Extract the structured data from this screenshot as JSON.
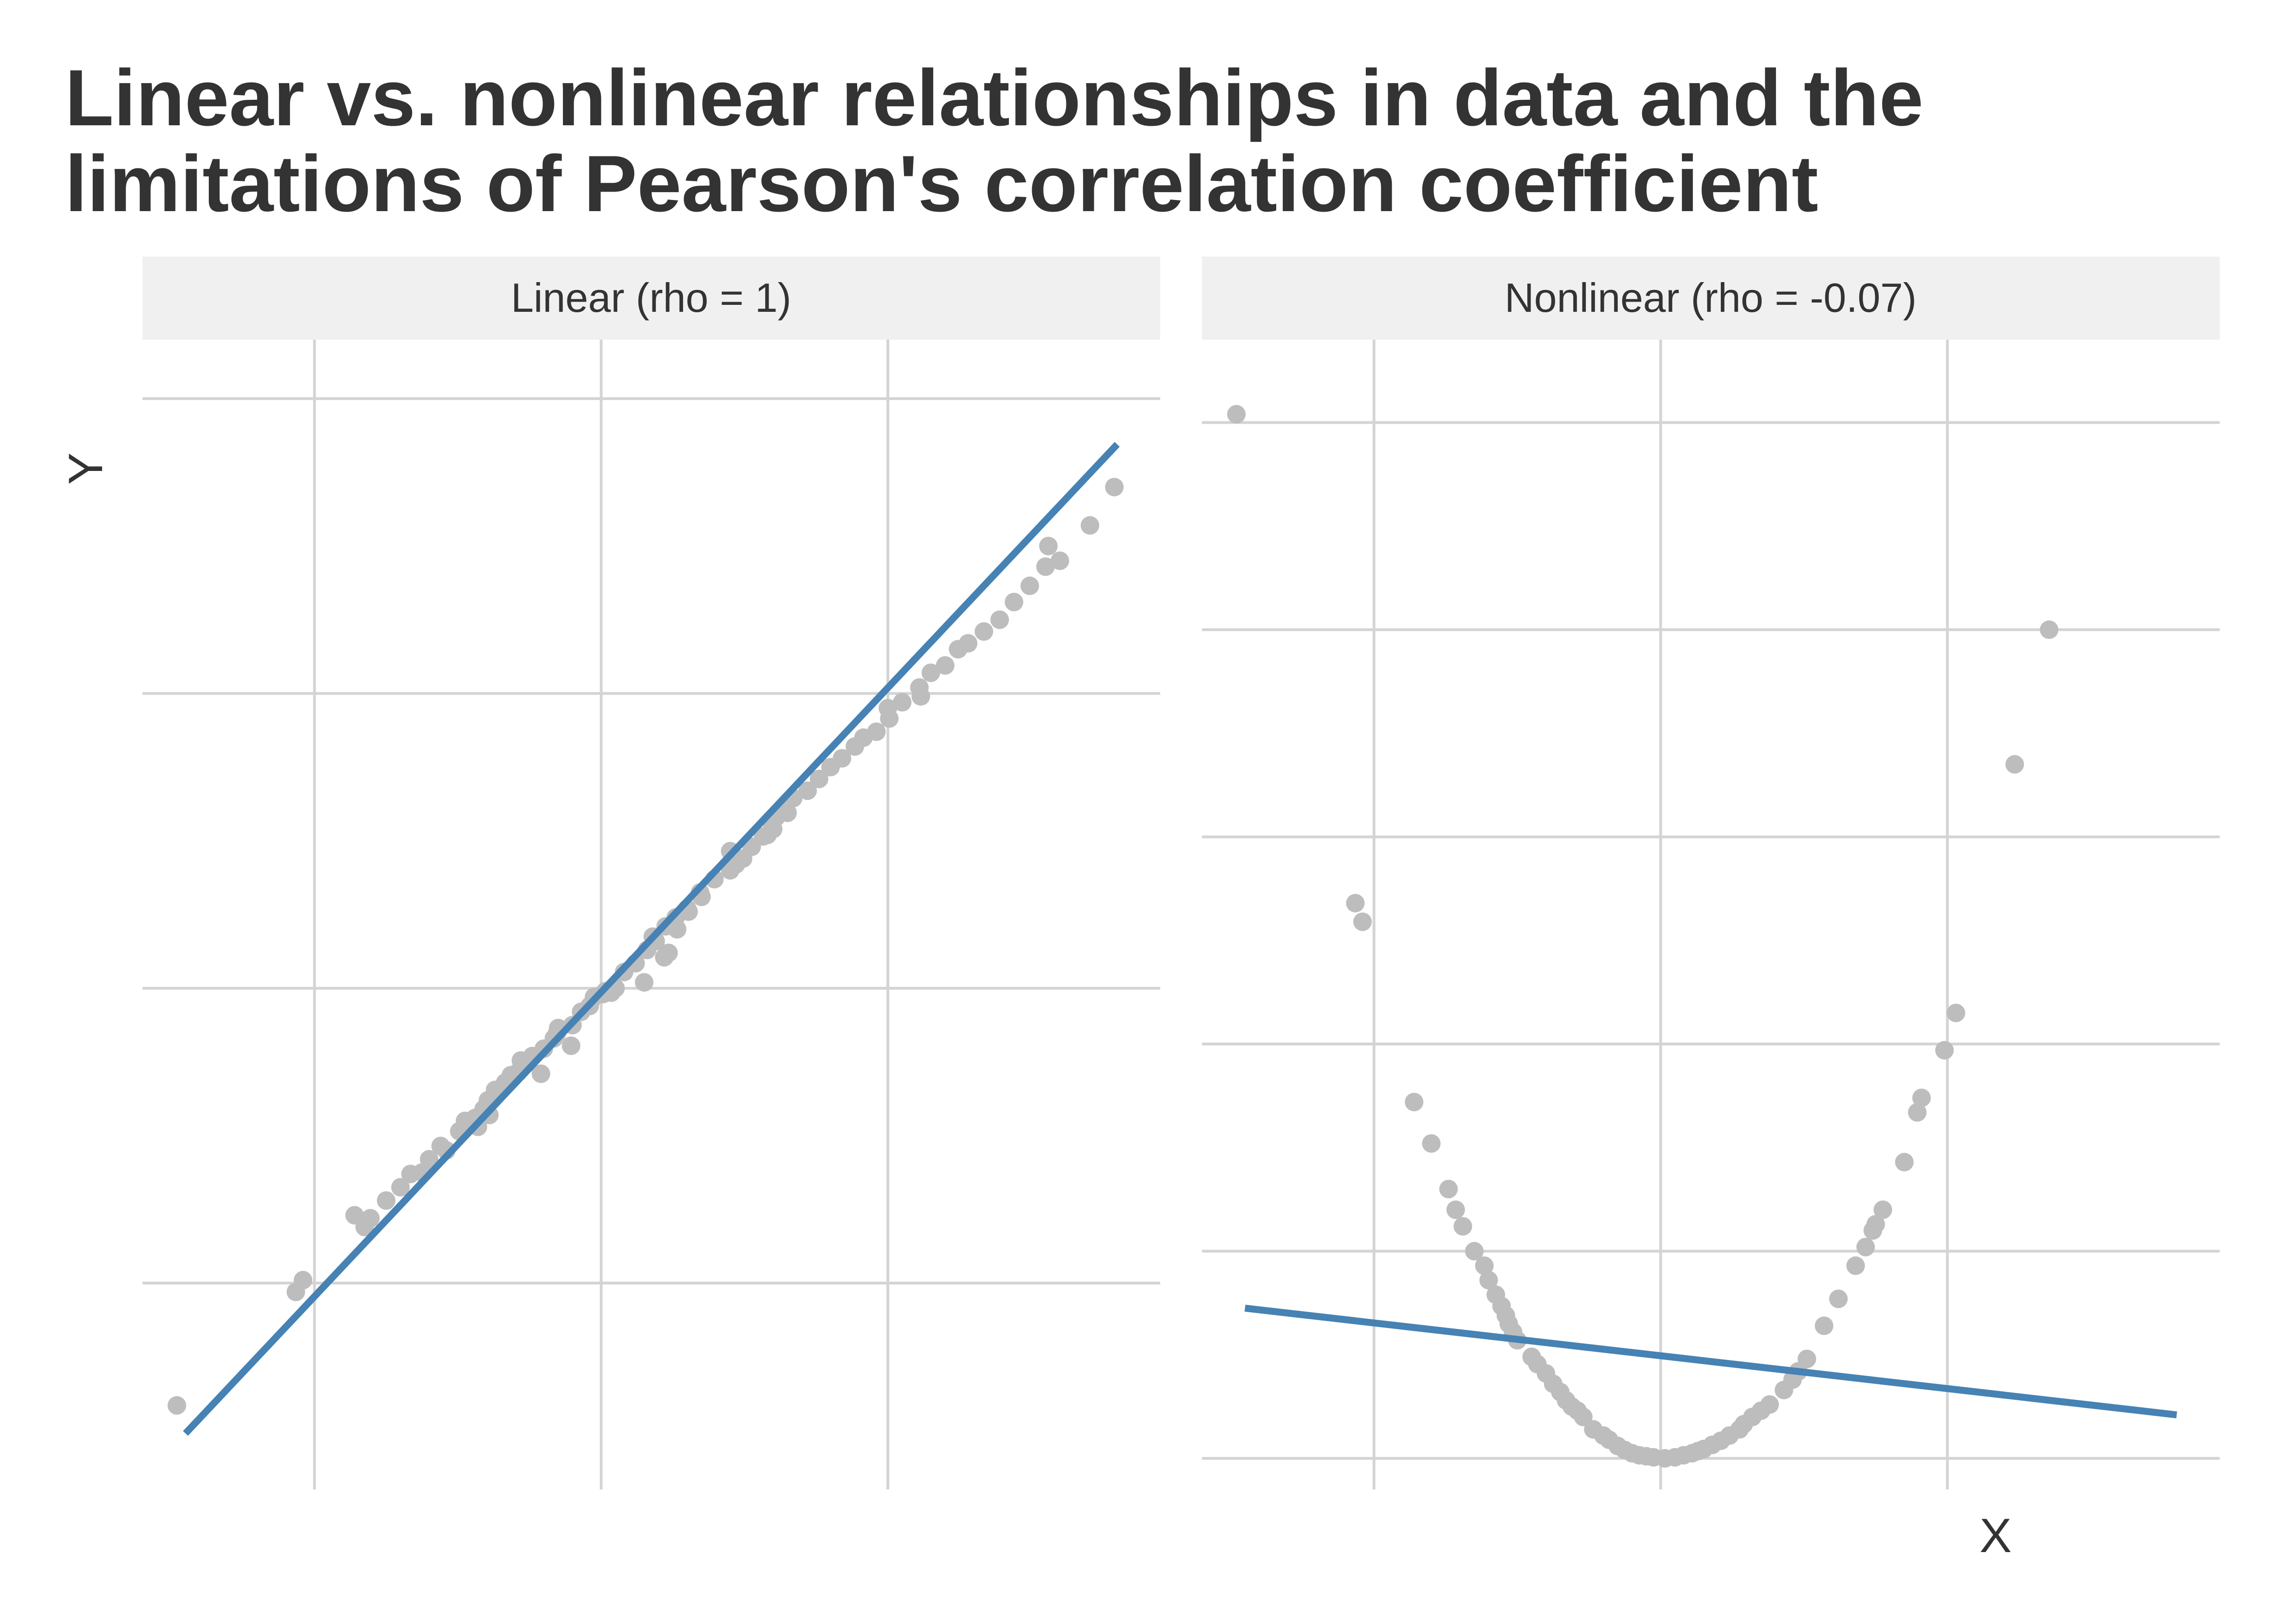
{
  "chart": {
    "title_line1": "Linear vs. nonlinear relationships in data and the",
    "title_line2": "limitations of Pearson's correlation coefficient",
    "xlabel": "X",
    "ylabel": "Y"
  },
  "colors": {
    "point": "#bdbdbd",
    "fit_line": "#4682b4",
    "strip_bg": "#f0f0f0",
    "grid": "#d4d4d4",
    "text": "#333333"
  },
  "chart_data": [
    {
      "type": "scatter",
      "facet_label": "Linear (rho = 1)",
      "xlabel": "",
      "ylabel": "Y",
      "grid": true,
      "xlim": [
        -3.2,
        3.9
      ],
      "ylim": [
        -3.4,
        4.4
      ],
      "fit_line": {
        "x": [
          -2.9,
          3.6
        ],
        "y": [
          -3.02,
          3.69
        ]
      },
      "points": [
        [
          -2.96,
          -2.83
        ],
        [
          -2.13,
          -2.06
        ],
        [
          -2.08,
          -1.98
        ],
        [
          -1.72,
          -1.54
        ],
        [
          -1.65,
          -1.62
        ],
        [
          -1.5,
          -1.44
        ],
        [
          -1.4,
          -1.35
        ],
        [
          -1.33,
          -1.26
        ],
        [
          -1.2,
          -1.16
        ],
        [
          -1.12,
          -1.07
        ],
        [
          -1.08,
          -1.1
        ],
        [
          -0.99,
          -0.97
        ],
        [
          -0.95,
          -0.9
        ],
        [
          -0.88,
          -0.88
        ],
        [
          -0.82,
          -0.82
        ],
        [
          -0.79,
          -0.76
        ],
        [
          -0.74,
          -0.69
        ],
        [
          -0.63,
          -0.59
        ],
        [
          -0.58,
          -0.57
        ],
        [
          -0.56,
          -0.49
        ],
        [
          -0.48,
          -0.46
        ],
        [
          -0.4,
          -0.41
        ],
        [
          -0.33,
          -0.34
        ],
        [
          -0.3,
          -0.27
        ],
        [
          -0.2,
          -0.25
        ],
        [
          -0.14,
          -0.16
        ],
        [
          -0.05,
          -0.06
        ],
        [
          -0.08,
          -0.12
        ],
        [
          0.03,
          -0.02
        ],
        [
          0.1,
          0.0
        ],
        [
          0.16,
          0.11
        ],
        [
          0.24,
          0.17
        ],
        [
          0.32,
          0.26
        ],
        [
          0.38,
          0.32
        ],
        [
          0.45,
          0.42
        ],
        [
          0.52,
          0.48
        ],
        [
          0.6,
          0.54
        ],
        [
          0.69,
          0.65
        ],
        [
          0.79,
          0.74
        ],
        [
          0.9,
          0.8
        ],
        [
          0.99,
          0.88
        ],
        [
          1.05,
          0.96
        ],
        [
          1.13,
          1.03
        ],
        [
          1.19,
          1.12
        ],
        [
          1.22,
          1.16
        ],
        [
          1.27,
          1.2
        ],
        [
          1.34,
          1.29
        ],
        [
          1.44,
          1.34
        ],
        [
          1.52,
          1.42
        ],
        [
          1.6,
          1.5
        ],
        [
          1.68,
          1.56
        ],
        [
          1.77,
          1.64
        ],
        [
          1.83,
          1.7
        ],
        [
          1.92,
          1.74
        ],
        [
          2.01,
          1.83
        ],
        [
          2.1,
          1.94
        ],
        [
          2.22,
          2.04
        ],
        [
          2.3,
          2.14
        ],
        [
          2.4,
          2.19
        ],
        [
          2.49,
          2.3
        ],
        [
          2.56,
          2.34
        ],
        [
          2.67,
          2.42
        ],
        [
          2.78,
          2.5
        ],
        [
          2.88,
          2.62
        ],
        [
          2.99,
          2.73
        ],
        [
          3.1,
          2.86
        ],
        [
          3.2,
          2.9
        ],
        [
          0.44,
          0.21
        ],
        [
          0.47,
          0.24
        ],
        [
          0.3,
          0.04
        ],
        [
          -0.21,
          -0.39
        ],
        [
          -0.42,
          -0.58
        ],
        [
          -0.78,
          -0.86
        ],
        [
          -0.86,
          -0.94
        ],
        [
          0.53,
          0.4
        ],
        [
          0.61,
          0.52
        ],
        [
          1.3,
          1.19
        ],
        [
          3.41,
          3.14
        ],
        [
          3.58,
          3.4
        ],
        [
          2.0,
          1.9
        ],
        [
          1.2,
          1.08
        ],
        [
          -1.25,
          -1.25
        ],
        [
          0.07,
          -0.03
        ],
        [
          0.36,
          0.35
        ],
        [
          0.94,
          0.84
        ],
        [
          -0.67,
          -0.64
        ],
        [
          -0.31,
          -0.31
        ],
        [
          0.9,
          0.93
        ],
        [
          2.23,
          1.98
        ],
        [
          1.16,
          1.04
        ],
        [
          0.01,
          -0.04
        ],
        [
          -0.52,
          -0.51
        ],
        [
          0.7,
          0.62
        ],
        [
          -1.61,
          -1.56
        ],
        [
          3.12,
          3.0
        ]
      ]
    },
    {
      "type": "scatter",
      "facet_label": "Nonlinear (rho = -0.07)",
      "xlabel": "X",
      "ylabel": "",
      "grid": true,
      "xlim": [
        -3.2,
        3.9
      ],
      "ylim": [
        -0.3,
        10.8
      ],
      "fit_line": {
        "x": [
          -2.9,
          3.6
        ],
        "y": [
          1.45,
          0.42
        ]
      },
      "points": [
        [
          -2.96,
          10.08
        ],
        [
          -2.13,
          5.36
        ],
        [
          -2.08,
          5.18
        ],
        [
          -1.72,
          3.44
        ],
        [
          -1.6,
          3.04
        ],
        [
          -1.48,
          2.6
        ],
        [
          -1.43,
          2.4
        ],
        [
          -1.38,
          2.24
        ],
        [
          -1.3,
          2.0
        ],
        [
          -1.23,
          1.86
        ],
        [
          -1.2,
          1.72
        ],
        [
          -1.15,
          1.58
        ],
        [
          -1.11,
          1.47
        ],
        [
          -1.08,
          1.38
        ],
        [
          -1.06,
          1.3
        ],
        [
          -1.03,
          1.22
        ],
        [
          -1.0,
          1.14
        ],
        [
          -0.9,
          0.98
        ],
        [
          -0.86,
          0.91
        ],
        [
          -0.8,
          0.82
        ],
        [
          -0.75,
          0.72
        ],
        [
          -0.7,
          0.64
        ],
        [
          -0.66,
          0.56
        ],
        [
          -0.62,
          0.5
        ],
        [
          -0.58,
          0.46
        ],
        [
          -0.54,
          0.4
        ],
        [
          -0.47,
          0.28
        ],
        [
          -0.4,
          0.22
        ],
        [
          -0.36,
          0.18
        ],
        [
          -0.3,
          0.12
        ],
        [
          -0.25,
          0.08
        ],
        [
          -0.2,
          0.05
        ],
        [
          -0.15,
          0.03
        ],
        [
          -0.1,
          0.02
        ],
        [
          -0.05,
          0.01
        ],
        [
          0.03,
          0.0
        ],
        [
          0.1,
          0.01
        ],
        [
          0.16,
          0.03
        ],
        [
          0.22,
          0.05
        ],
        [
          0.26,
          0.07
        ],
        [
          0.3,
          0.09
        ],
        [
          0.36,
          0.13
        ],
        [
          0.42,
          0.17
        ],
        [
          0.48,
          0.22
        ],
        [
          0.55,
          0.28
        ],
        [
          0.58,
          0.33
        ],
        [
          0.64,
          0.4
        ],
        [
          0.7,
          0.46
        ],
        [
          0.76,
          0.52
        ],
        [
          0.86,
          0.66
        ],
        [
          0.92,
          0.76
        ],
        [
          0.96,
          0.84
        ],
        [
          1.02,
          0.96
        ],
        [
          1.14,
          1.28
        ],
        [
          1.24,
          1.54
        ],
        [
          1.36,
          1.86
        ],
        [
          1.43,
          2.04
        ],
        [
          1.48,
          2.2
        ],
        [
          1.5,
          2.26
        ],
        [
          1.55,
          2.4
        ],
        [
          1.7,
          2.86
        ],
        [
          1.79,
          3.34
        ],
        [
          1.82,
          3.48
        ],
        [
          1.98,
          3.94
        ],
        [
          2.06,
          4.3
        ],
        [
          2.47,
          6.7
        ],
        [
          2.71,
          8.0
        ]
      ]
    }
  ]
}
